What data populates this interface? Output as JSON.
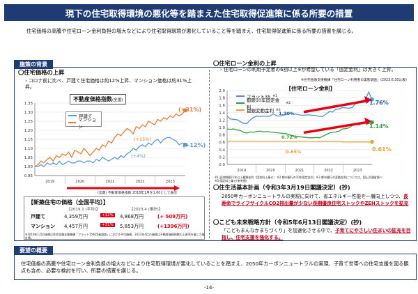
{
  "title": "現下の住宅取得環境の悪化等を踏まえた住宅取得促進策に係る所要の措置",
  "intro": "住宅価格の高騰や住宅ローン金利負担の増大などにより住宅取得環境が悪化していること等を踏まえ、住宅取得促進策に係る所要の措置を講じる。",
  "background": {
    "heading": "施策の背景",
    "price": {
      "title": "〇住宅価格の上昇",
      "bullet": "コロナ前に比べ、戸建て住宅価格は約12%上昇、マンション価格は約31%上昇。",
      "chart_title": "不動産価格指数",
      "chart_subtitle": "(全国)",
      "source": "(出典) 不動産価格指数 2018年1月を1.00として表示",
      "series_labels": [
        "戸建て",
        "マンション"
      ],
      "ann_31": "(+31%)",
      "ann_15": "(+15%)",
      "ann_12": "(+12%)",
      "ann_4": "(+4%)"
    },
    "new_price": {
      "title": "【新築住宅の価格（全国平均）】",
      "col1": "【2019.1 (平均)】",
      "col2": "【2023.4 (推計)】",
      "rows": [
        {
          "label": "戸建て",
          "v1": "4,359万円",
          "pct": "+12%",
          "v2": "4,868万円",
          "diff": "(+ 509万円)"
        },
        {
          "label": "マンション",
          "v1": "4,457万円",
          "pct": "+31%",
          "v2": "5,853万円",
          "diff": "(+1396万円)"
        }
      ],
      "note": "※2019年1月の価格は住宅金融支援機構「フラット35利用者調査」における平均価格、2023年4月の価格は不動産価格指数の上昇率を乗じた推計値。"
    },
    "loan": {
      "title": "〇住宅ローン金利の上昇",
      "bullet": "住宅ローンの利用予定者の6割以上※が希望している「固定金利」は大きく上昇。",
      "bullet_note": "※住宅金融支援機構「住宅ローン利用者の実態調査」(2023.6.30公表)",
      "chart_title": "【住宅ローン金利】",
      "legend": [
        "フラット35",
        "都銀10年固定金利",
        "都銀変動金利"
      ],
      "legend_notes": [
        "※1",
        "※2",
        "※3"
      ],
      "ann_176": "1.76%",
      "ann_130": "1.30%",
      "ann_114": "1.14%",
      "ann_072": "0.72%",
      "ann_065": "0.65%",
      "ann_061": "0.61%",
      "notes": [
        "※1 返済期間21年以上最頻金利（団信料上乗せ） ※2 都市銀行の10年固定金利、※3 都市銀行の変動金利については、国土交通省調べ",
        "※3 保証料上乗せ(参考値)"
      ]
    },
    "plan": {
      "title": "〇住生活基本計画（令和3年3月19日閣議決定）(抄)",
      "text_a": "2050年カーボンニュートラルの実現に向けて、省エネルギー性能を一層向上しつつ、",
      "text_b": "長寿命でライフサイクルCO2排出量が少ない長期優良住宅ストックやZEHストックを拡充"
    },
    "strategy": {
      "title": "〇こども未来戦略方針（令和5年6月13日閣議決定）(抄)",
      "text_a": "「こどもまんなかまちづくり」を加速化させる中で、",
      "text_b": "子育てにやさしい住まいの拡充を目指し、住宅支援を強化する。"
    }
  },
  "request": {
    "heading": "要望の概要",
    "text": "住宅価格の高騰や住宅ローン金利負担の増大などにより住宅取得環境が悪化していることを踏まえ、2050年カーボンニュートラルの実現、子育て世帯への住宅支援を図る観点も含め、必要な検討を行い、所要の措置を講じる。"
  },
  "page": "-14-",
  "chart_data": [
    {
      "type": "line",
      "title": "不動産価格指数",
      "ylim": [
        0.95,
        1.35
      ],
      "yticks": [
        "1.35",
        "1.30",
        "1.25",
        "1.20",
        "1.15",
        "1.10",
        "1.05",
        "1.00",
        "0.95"
      ],
      "years": [
        "2019",
        "2020",
        "2021",
        "2022",
        "2023"
      ],
      "series": [
        {
          "name": "戸建て",
          "color": "#5b9bd5",
          "values": [
            1.0,
            1.0,
            1.01,
            1.0,
            1.02,
            1.01,
            1.02,
            1.01,
            1.03,
            1.01,
            1.02,
            1.03,
            1.02,
            1.02,
            1.03,
            1.03,
            1.02,
            1.03,
            1.03,
            1.02,
            1.04,
            1.03,
            1.05,
            1.04,
            1.03,
            1.04,
            1.05,
            1.04,
            1.06,
            1.05,
            1.07,
            1.08,
            1.1,
            1.09,
            1.11,
            1.12,
            1.11,
            1.13,
            1.12,
            1.14,
            1.15,
            1.13,
            1.15,
            1.16,
            1.16,
            1.15,
            1.14,
            1.12,
            1.13,
            1.12
          ]
        },
        {
          "name": "マンション",
          "color": "#ed7d31",
          "values": [
            1.0,
            1.01,
            1.03,
            1.02,
            1.04,
            1.05,
            1.03,
            1.06,
            1.05,
            1.07,
            1.06,
            1.08,
            1.05,
            1.09,
            1.08,
            1.07,
            1.1,
            1.08,
            1.06,
            1.08,
            1.1,
            1.09,
            1.12,
            1.11,
            1.14,
            1.13,
            1.16,
            1.18,
            1.17,
            1.19,
            1.21,
            1.2,
            1.18,
            1.22,
            1.21,
            1.23,
            1.22,
            1.25,
            1.24,
            1.23,
            1.26,
            1.25,
            1.27,
            1.26,
            1.28,
            1.27,
            1.29,
            1.28,
            1.29,
            1.31
          ]
        }
      ]
    },
    {
      "type": "line",
      "title": "【住宅ローン金利】",
      "ylim": [
        0.0,
        2.0
      ],
      "yticks": [
        "2.0",
        "1.8",
        "1.6",
        "1.4",
        "1.2",
        "1.0",
        "0.8",
        "0.6",
        "0.4",
        "0.2",
        "0.0"
      ],
      "years": [
        "2019",
        "2020",
        "2021",
        "2022",
        "2023"
      ],
      "series": [
        {
          "name": "フラット35",
          "color": "#4a90d9",
          "values": [
            1.31,
            1.23,
            1.22,
            1.21,
            1.16,
            1.11,
            1.11,
            1.2,
            1.27,
            1.31,
            1.3,
            1.31,
            1.3,
            1.31,
            1.37,
            1.32,
            1.31,
            1.33,
            1.35,
            1.38,
            1.37,
            1.36,
            1.34,
            1.33,
            1.34,
            1.34,
            1.33,
            1.32,
            1.3,
            1.3,
            1.36,
            1.43,
            1.42,
            1.49,
            1.5,
            1.54,
            1.53,
            1.52,
            1.54,
            1.65,
            1.68,
            1.72,
            1.76,
            1.96,
            1.76
          ]
        },
        {
          "name": "都銀10年固定金利",
          "color": "#2e9e3f",
          "values": [
            0.96,
            0.95,
            0.96,
            0.93,
            0.92,
            0.87,
            0.85,
            0.88,
            0.87,
            0.89,
            0.9,
            0.88,
            0.89,
            0.88,
            0.87,
            0.86,
            0.85,
            0.84,
            0.83,
            0.8,
            0.78,
            0.76,
            0.75,
            0.74,
            0.73,
            0.72,
            0.72,
            0.73,
            0.72,
            0.76,
            0.8,
            0.85,
            0.87,
            0.88,
            0.9,
            0.96,
            0.97,
            0.99,
            1.05,
            1.1,
            1.07,
            1.12,
            1.14,
            1.1,
            1.14
          ]
        },
        {
          "name": "都銀変動金利",
          "color": "#f0a030",
          "values": [
            0.63,
            0.63,
            0.63,
            0.63,
            0.63,
            0.63,
            0.63,
            0.63,
            0.63,
            0.63,
            0.63,
            0.63,
            0.63,
            0.63,
            0.63,
            0.63,
            0.63,
            0.63,
            0.63,
            0.63,
            0.63,
            0.63,
            0.63,
            0.63,
            0.63,
            0.63,
            0.62,
            0.62,
            0.62,
            0.62,
            0.62,
            0.62,
            0.62,
            0.62,
            0.62,
            0.61,
            0.61,
            0.61,
            0.61,
            0.61,
            0.61,
            0.61,
            0.61,
            0.61,
            0.61
          ]
        }
      ]
    }
  ]
}
